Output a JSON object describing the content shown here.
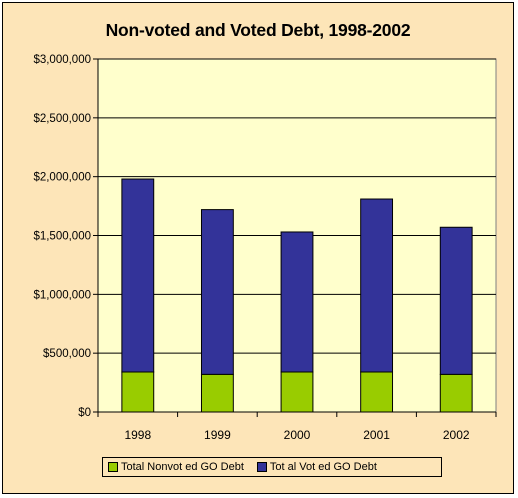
{
  "chart_data": {
    "type": "bar",
    "stacked": true,
    "title": "Non-voted and Voted Debt, 1998-2002",
    "categories": [
      "1998",
      "1999",
      "2000",
      "2001",
      "2002"
    ],
    "series": [
      {
        "name": "Total Nonvot ed GO Debt",
        "values": [
          340000,
          320000,
          340000,
          340000,
          320000
        ],
        "color": "#99cc00"
      },
      {
        "name": "Tot al Vot ed GO Debt",
        "values": [
          1640000,
          1400000,
          1190000,
          1470000,
          1250000
        ],
        "color": "#333399"
      }
    ],
    "ylim": [
      0,
      3000000
    ],
    "yticks": [
      "$0",
      "$500,000",
      "$1,000,000",
      "$1,500,000",
      "$2,000,000",
      "$2,500,000",
      "$3,000,000"
    ],
    "grid": true,
    "legend": "bottom",
    "plot_background": "#ffffcc",
    "chart_background": "#fde5b8"
  }
}
